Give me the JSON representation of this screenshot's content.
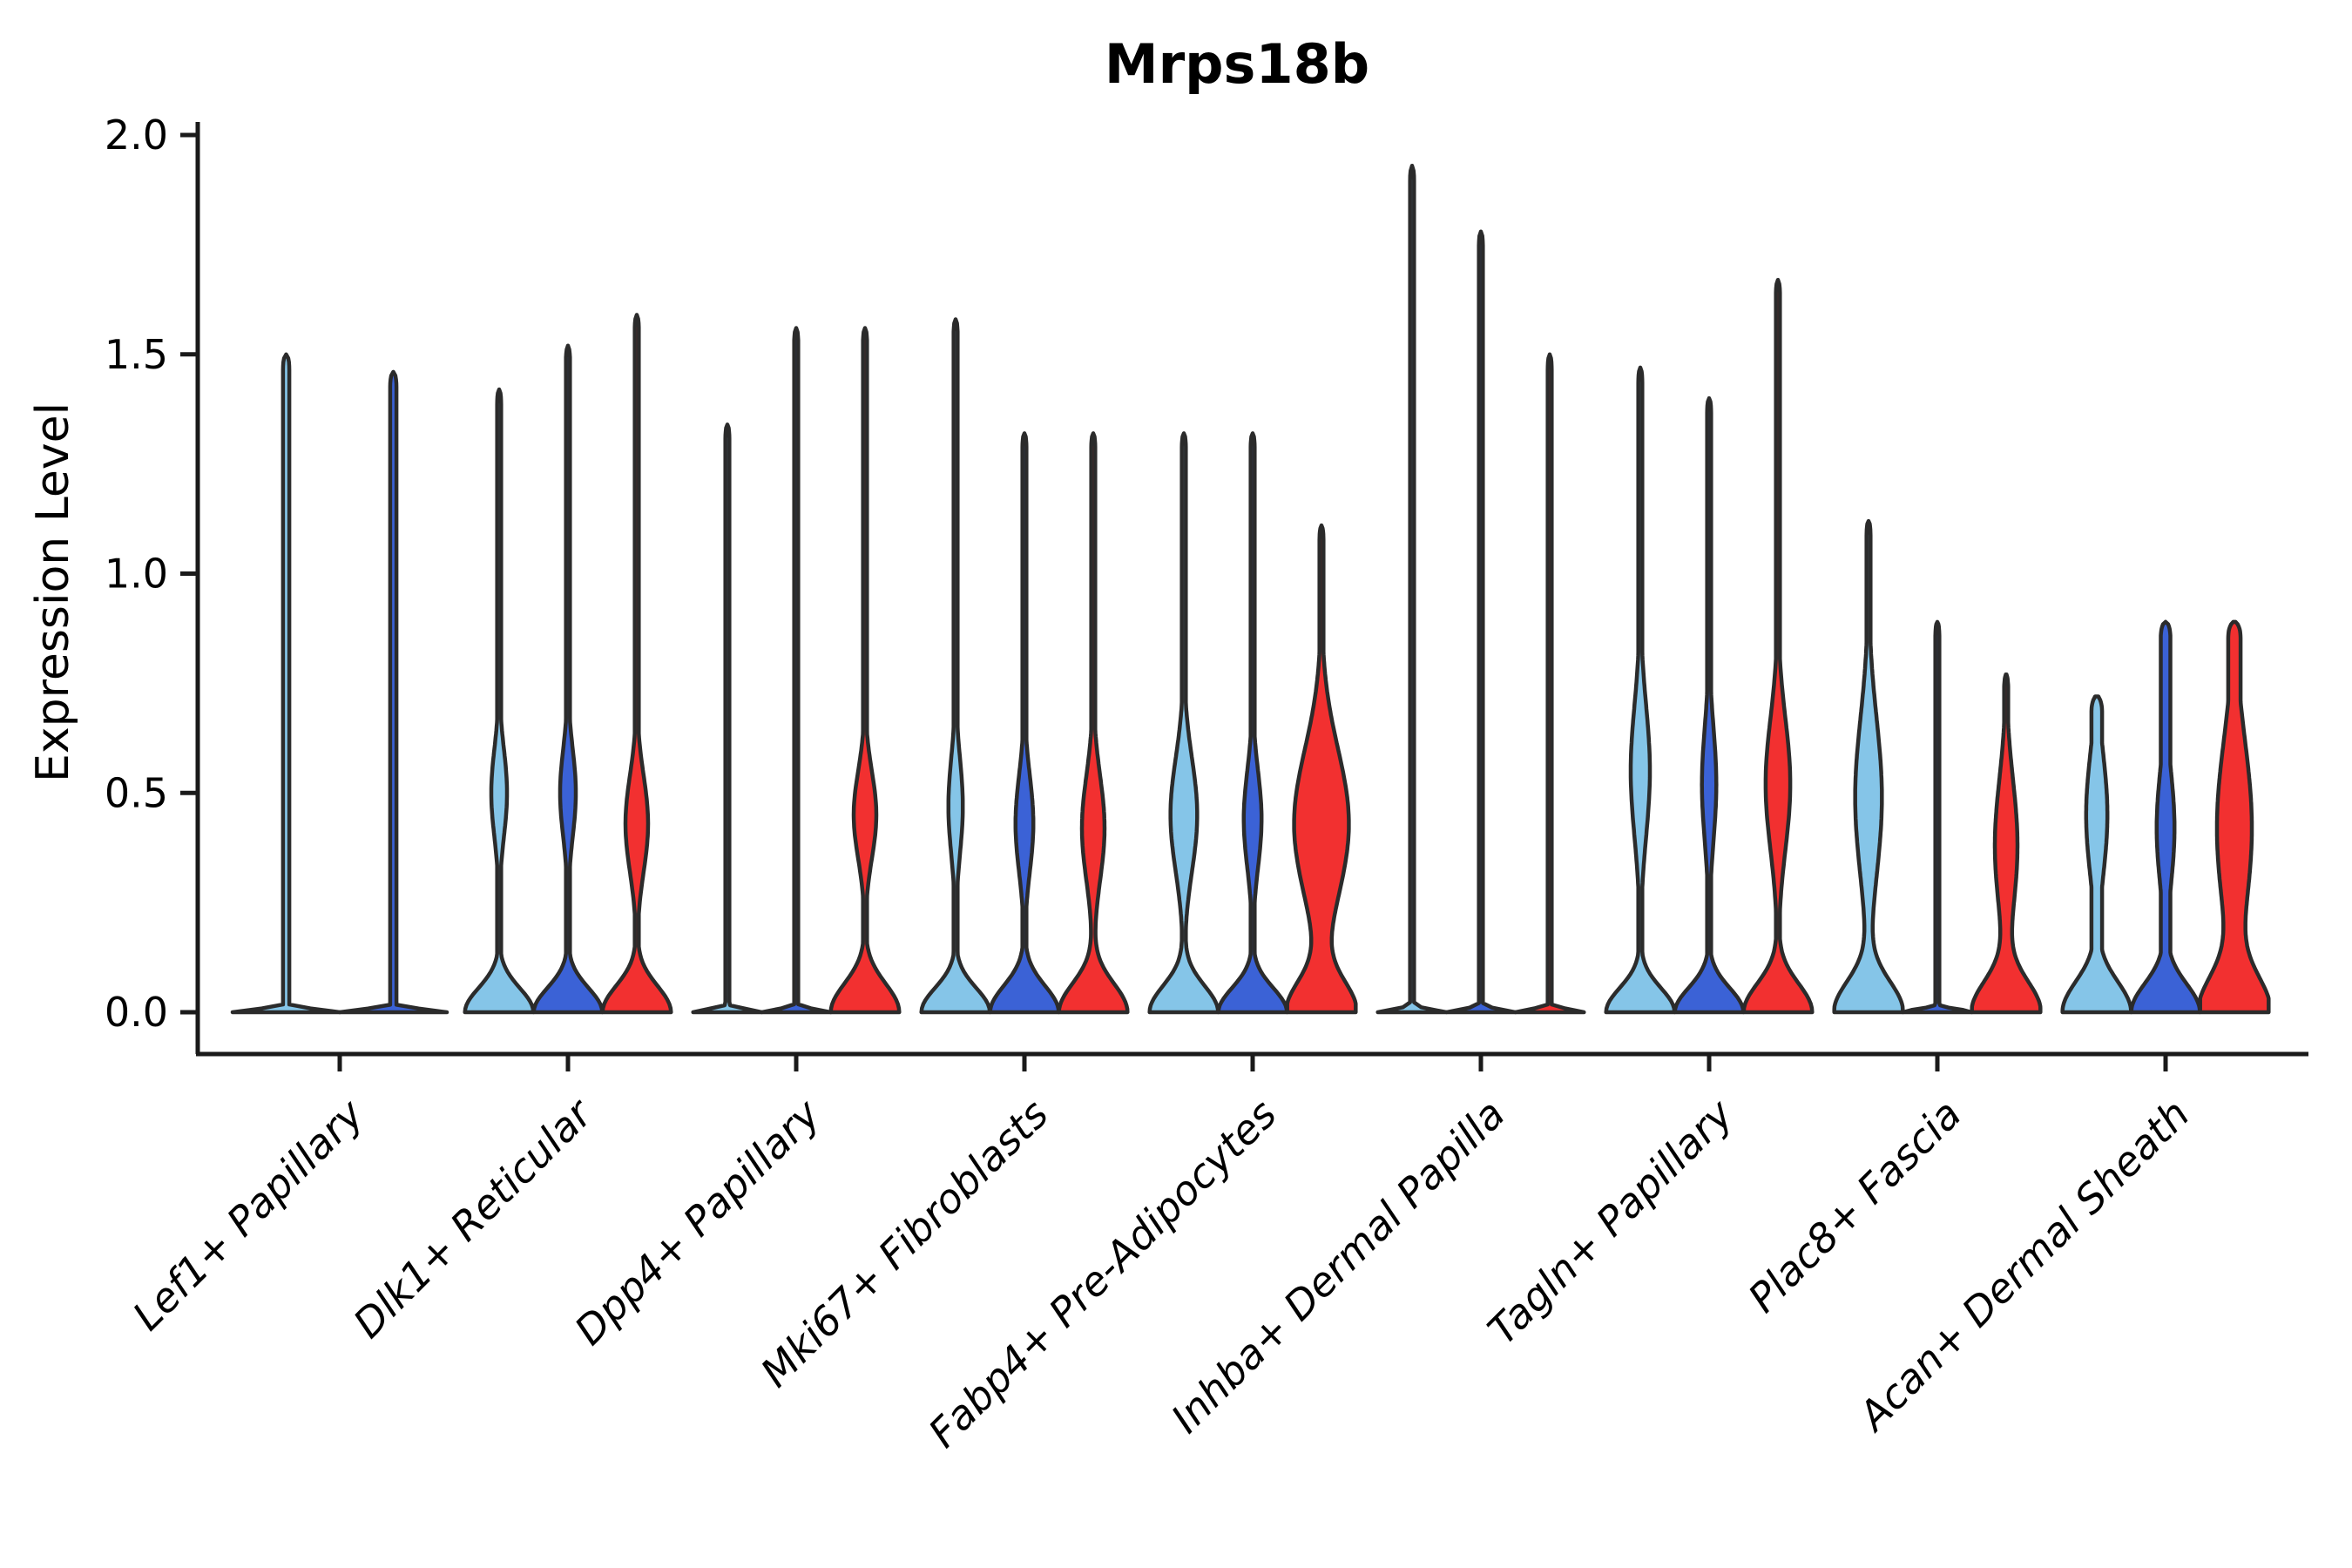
{
  "chart_data": {
    "type": "violin",
    "title": "Mrps18b",
    "ylabel": "Expression Level",
    "xlabel": "",
    "ylim": [
      0,
      2.0
    ],
    "ytick_labels": [
      "0.0",
      "0.5",
      "1.0",
      "1.5",
      "2.0"
    ],
    "ytick_values": [
      0,
      0.5,
      1.0,
      1.5,
      2.0
    ],
    "grid": false,
    "legend": "none",
    "categories": [
      "Lef1+ Papillary",
      "Dlk1+ Reticular",
      "Dpp4+ Papillary",
      "Mki67+ Fibroblasts",
      "Fabp4+ Pre-Adipocytes",
      "Inhba+ Dermal Papilla",
      "Tagln+ Papillary",
      "Plac8+ Fascia",
      "Acan+ Dermal Sheath"
    ],
    "palette": {
      "skyblue": "#85C5E8",
      "royalblue": "#3B62D6",
      "red": "#F23030",
      "outline": "#2B2B2B",
      "axis": "#1A1A1A"
    },
    "groups": [
      {
        "category": "Lef1+ Papillary",
        "violins": [
          {
            "color": "skyblue",
            "max": 1.5,
            "collapsed": true
          },
          {
            "color": "royalblue",
            "max": 1.46,
            "collapsed": true
          }
        ]
      },
      {
        "category": "Dlk1+ Reticular",
        "violins": [
          {
            "color": "skyblue",
            "max": 1.42,
            "bulge": {
              "center": 0.5,
              "sigma": 0.1,
              "w": 0.23
            },
            "base_sigma": 0.055
          },
          {
            "color": "royalblue",
            "max": 1.52,
            "bulge": {
              "center": 0.5,
              "sigma": 0.1,
              "w": 0.23
            },
            "base_sigma": 0.055
          },
          {
            "color": "red",
            "max": 1.59,
            "bulge": {
              "center": 0.43,
              "sigma": 0.11,
              "w": 0.33
            },
            "base_sigma": 0.06
          }
        ]
      },
      {
        "category": "Dpp4+ Papillary",
        "violins": [
          {
            "color": "skyblue",
            "max": 1.34,
            "collapsed": true
          },
          {
            "color": "royalblue",
            "max": 1.56,
            "collapsed": true
          },
          {
            "color": "red",
            "max": 1.56,
            "bulge": {
              "center": 0.45,
              "sigma": 0.1,
              "w": 0.33
            },
            "base_sigma": 0.065
          }
        ]
      },
      {
        "category": "Mki67+ Fibroblasts",
        "violins": [
          {
            "color": "skyblue",
            "max": 1.58,
            "bulge": {
              "center": 0.47,
              "sigma": 0.11,
              "w": 0.21
            },
            "base_sigma": 0.055
          },
          {
            "color": "royalblue",
            "max": 1.32,
            "bulge": {
              "center": 0.43,
              "sigma": 0.11,
              "w": 0.26
            },
            "base_sigma": 0.06
          },
          {
            "color": "red",
            "max": 1.32,
            "bulge": {
              "center": 0.42,
              "sigma": 0.12,
              "w": 0.33
            },
            "base_sigma": 0.065
          }
        ]
      },
      {
        "category": "Fabp4+ Pre-Adipocytes",
        "violins": [
          {
            "color": "skyblue",
            "max": 1.32,
            "bulge": {
              "center": 0.45,
              "sigma": 0.13,
              "w": 0.39
            },
            "base_sigma": 0.06
          },
          {
            "color": "royalblue",
            "max": 1.32,
            "bulge": {
              "center": 0.44,
              "sigma": 0.11,
              "w": 0.26
            },
            "base_sigma": 0.055
          },
          {
            "color": "red",
            "max": 1.11,
            "bulge": {
              "center": 0.43,
              "sigma": 0.17,
              "w": 0.8
            },
            "base_sigma": 0.07
          }
        ]
      },
      {
        "category": "Inhba+ Dermal Papilla",
        "violins": [
          {
            "color": "skyblue",
            "max": 1.93,
            "collapsed": true
          },
          {
            "color": "royalblue",
            "max": 1.78,
            "collapsed": true
          },
          {
            "color": "red",
            "max": 1.5,
            "collapsed": true
          }
        ]
      },
      {
        "category": "Tagln+ Papillary",
        "violins": [
          {
            "color": "skyblue",
            "max": 1.47,
            "bulge": {
              "center": 0.55,
              "sigma": 0.15,
              "w": 0.28
            },
            "base_sigma": 0.055
          },
          {
            "color": "royalblue",
            "max": 1.4,
            "bulge": {
              "center": 0.52,
              "sigma": 0.13,
              "w": 0.21
            },
            "base_sigma": 0.055
          },
          {
            "color": "red",
            "max": 1.67,
            "bulge": {
              "center": 0.52,
              "sigma": 0.15,
              "w": 0.36
            },
            "base_sigma": 0.065
          }
        ]
      },
      {
        "category": "Plac8+ Fascia",
        "violins": [
          {
            "color": "skyblue",
            "max": 1.12,
            "bulge": {
              "center": 0.49,
              "sigma": 0.18,
              "w": 0.39
            },
            "base_sigma": 0.07
          },
          {
            "color": "royalblue",
            "max": 0.89,
            "collapsed": true
          },
          {
            "color": "red",
            "max": 0.77,
            "bulge": {
              "center": 0.38,
              "sigma": 0.15,
              "w": 0.33
            },
            "base_sigma": 0.07
          }
        ]
      },
      {
        "category": "Acan+ Dermal Sheath",
        "violins": [
          {
            "color": "skyblue",
            "max": 0.72,
            "tail_w": 0.155,
            "bulge": {
              "center": 0.45,
              "sigma": 0.14,
              "w": 0.31
            },
            "base_sigma": 0.07
          },
          {
            "color": "royalblue",
            "max": 0.89,
            "tail_w": 0.14,
            "bulge": {
              "center": 0.42,
              "sigma": 0.13,
              "w": 0.26
            },
            "base_sigma": 0.065
          },
          {
            "color": "red",
            "max": 0.89,
            "tail_w": 0.18,
            "bulge": {
              "center": 0.42,
              "sigma": 0.2,
              "w": 0.51
            },
            "base_sigma": 0.08
          }
        ]
      }
    ]
  }
}
